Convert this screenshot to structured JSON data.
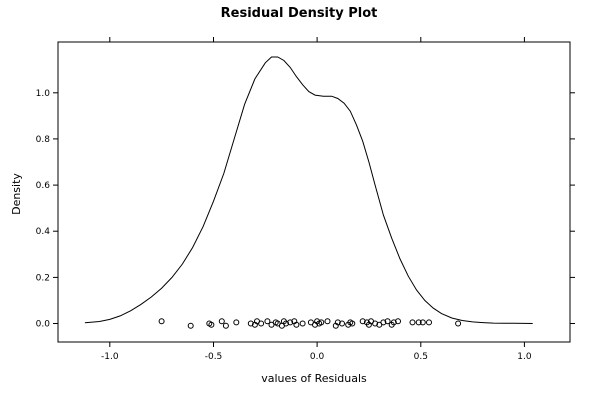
{
  "chart_data": {
    "type": "line",
    "title": "Residual Density Plot",
    "xlabel": "values of Residuals",
    "ylabel": "Density",
    "xlim": [
      -1.25,
      1.22
    ],
    "ylim": [
      -0.08,
      1.22
    ],
    "x_ticks": [
      -1.0,
      -0.5,
      0.0,
      0.5,
      1.0
    ],
    "x_tick_labels": [
      "-1.0",
      "-0.5",
      "0.0",
      "0.5",
      "1.0"
    ],
    "y_ticks": [
      0.0,
      0.2,
      0.4,
      0.6,
      0.8,
      1.0
    ],
    "y_tick_labels": [
      "0.0",
      "0.2",
      "0.4",
      "0.6",
      "0.8",
      "1.0"
    ],
    "grid": false,
    "series": [
      {
        "type": "line",
        "x": [
          -1.12,
          -1.05,
          -1.0,
          -0.95,
          -0.9,
          -0.85,
          -0.8,
          -0.75,
          -0.7,
          -0.65,
          -0.6,
          -0.55,
          -0.5,
          -0.45,
          -0.4,
          -0.35,
          -0.3,
          -0.25,
          -0.22,
          -0.19,
          -0.16,
          -0.13,
          -0.1,
          -0.07,
          -0.04,
          -0.01,
          0.03,
          0.07,
          0.1,
          0.13,
          0.16,
          0.19,
          0.22,
          0.25,
          0.28,
          0.32,
          0.36,
          0.4,
          0.44,
          0.48,
          0.52,
          0.56,
          0.6,
          0.65,
          0.7,
          0.75,
          0.8,
          0.85,
          0.9,
          0.95,
          1.0,
          1.04
        ],
        "y": [
          0.003,
          0.009,
          0.018,
          0.033,
          0.055,
          0.083,
          0.115,
          0.153,
          0.2,
          0.258,
          0.33,
          0.42,
          0.53,
          0.65,
          0.8,
          0.95,
          1.06,
          1.13,
          1.155,
          1.155,
          1.14,
          1.11,
          1.07,
          1.035,
          1.005,
          0.99,
          0.985,
          0.985,
          0.975,
          0.955,
          0.92,
          0.86,
          0.79,
          0.7,
          0.6,
          0.47,
          0.37,
          0.28,
          0.205,
          0.145,
          0.1,
          0.067,
          0.043,
          0.024,
          0.013,
          0.007,
          0.004,
          0.002,
          0.001,
          0.001,
          0.0005,
          0.0
        ]
      },
      {
        "type": "scatter",
        "x": [
          -0.75,
          -0.61,
          -0.52,
          -0.51,
          -0.46,
          -0.44,
          -0.39,
          -0.32,
          -0.3,
          -0.29,
          -0.27,
          -0.24,
          -0.22,
          -0.2,
          -0.19,
          -0.17,
          -0.16,
          -0.15,
          -0.13,
          -0.11,
          -0.1,
          -0.07,
          -0.03,
          -0.01,
          0.0,
          0.01,
          0.02,
          0.05,
          0.09,
          0.1,
          0.12,
          0.15,
          0.16,
          0.17,
          0.22,
          0.24,
          0.25,
          0.26,
          0.28,
          0.3,
          0.32,
          0.34,
          0.36,
          0.37,
          0.39,
          0.46,
          0.49,
          0.51,
          0.54,
          0.68
        ],
        "y": [
          0.01,
          -0.01,
          0.0,
          -0.005,
          0.01,
          -0.01,
          0.005,
          0.0,
          -0.005,
          0.01,
          0.0,
          0.01,
          -0.005,
          0.005,
          0.0,
          -0.01,
          0.01,
          0.0,
          0.005,
          0.01,
          -0.005,
          0.0,
          0.005,
          -0.005,
          0.01,
          0.0,
          0.005,
          0.01,
          -0.01,
          0.005,
          0.0,
          -0.005,
          0.005,
          0.0,
          0.01,
          0.005,
          -0.005,
          0.01,
          0.0,
          -0.005,
          0.005,
          0.01,
          -0.005,
          0.005,
          0.01,
          0.005,
          0.005,
          0.005,
          0.005,
          0.0
        ]
      }
    ]
  }
}
